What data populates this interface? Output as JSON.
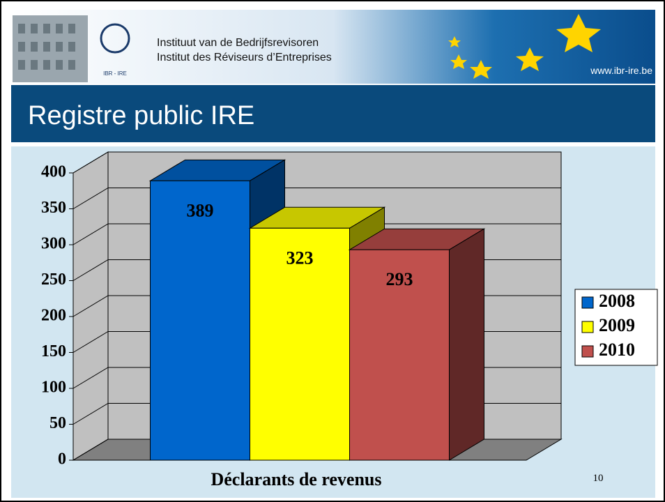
{
  "header": {
    "line1": "Instituut van de Bedrijfsrevisoren",
    "line2": "Institut des Réviseurs d’Entreprises",
    "url": "www.ibr-ire.be",
    "logo": "IBR - IRE"
  },
  "slide_title": "Registre public IRE",
  "page_number": "10",
  "chart_data": {
    "type": "bar3d",
    "categories": [
      "Déclarants de revenus"
    ],
    "series": [
      {
        "name": "2008",
        "color": "#0066cc",
        "values": [
          389
        ]
      },
      {
        "name": "2009",
        "color": "#ffff00",
        "values": [
          323
        ]
      },
      {
        "name": "2010",
        "color": "#c0504d",
        "values": [
          293
        ]
      }
    ],
    "ylim": [
      0,
      400
    ],
    "yticks": [
      0,
      50,
      100,
      150,
      200,
      250,
      300,
      350,
      400
    ],
    "grid": true,
    "legend": "right"
  }
}
